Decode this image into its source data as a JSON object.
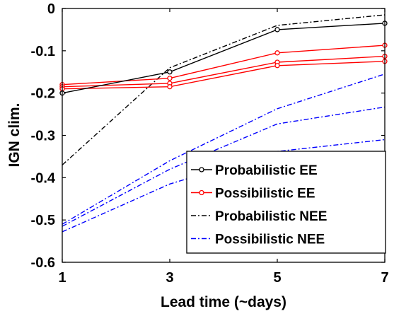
{
  "chart_data": {
    "type": "line",
    "title": "",
    "xlabel": "Lead time (~days)",
    "ylabel": "IGN clim.",
    "x": [
      1,
      3,
      5,
      7
    ],
    "xticks": [
      "1",
      "3",
      "5",
      "7"
    ],
    "yticks": [
      "0",
      "-0.1",
      "-0.2",
      "-0.3",
      "-0.4",
      "-0.5",
      "-0.6"
    ],
    "xlim": [
      1,
      7
    ],
    "ylim": [
      -0.6,
      0
    ],
    "grid": false,
    "legend_position": "bottom-right",
    "legend": [
      {
        "name": "Probabilistic EE",
        "color": "#000000",
        "dash": "solid",
        "marker": "circle"
      },
      {
        "name": "Possibilistic EE",
        "color": "#ff0000",
        "dash": "solid",
        "marker": "circle"
      },
      {
        "name": "Probabilistic NEE",
        "color": "#000000",
        "dash": "dashdot",
        "marker": "none"
      },
      {
        "name": "Possibilistic NEE",
        "color": "#0000ff",
        "dash": "dashdot",
        "marker": "none"
      }
    ],
    "series": [
      {
        "legend_index": 0,
        "color": "#000000",
        "dash": "solid",
        "marker": "circle",
        "values": [
          -0.2,
          -0.15,
          -0.05,
          -0.035
        ]
      },
      {
        "legend_index": 1,
        "color": "#ff0000",
        "dash": "solid",
        "marker": "circle",
        "values": [
          -0.18,
          -0.165,
          -0.105,
          -0.087
        ]
      },
      {
        "legend_index": 1,
        "color": "#ff0000",
        "dash": "solid",
        "marker": "circle",
        "values": [
          -0.185,
          -0.177,
          -0.127,
          -0.113
        ]
      },
      {
        "legend_index": 1,
        "color": "#ff0000",
        "dash": "solid",
        "marker": "circle",
        "values": [
          -0.19,
          -0.185,
          -0.135,
          -0.125
        ]
      },
      {
        "legend_index": 2,
        "color": "#000000",
        "dash": "dashdot",
        "marker": "none",
        "values": [
          -0.37,
          -0.14,
          -0.04,
          -0.015
        ]
      },
      {
        "legend_index": 3,
        "color": "#0000ff",
        "dash": "dashdot",
        "marker": "none",
        "values": [
          -0.51,
          -0.36,
          -0.237,
          -0.155
        ]
      },
      {
        "legend_index": 3,
        "color": "#0000ff",
        "dash": "dashdot",
        "marker": "none",
        "values": [
          -0.515,
          -0.38,
          -0.273,
          -0.233
        ]
      },
      {
        "legend_index": 3,
        "color": "#0000ff",
        "dash": "dashdot",
        "marker": "none",
        "values": [
          -0.528,
          -0.415,
          -0.338,
          -0.31
        ]
      }
    ]
  }
}
